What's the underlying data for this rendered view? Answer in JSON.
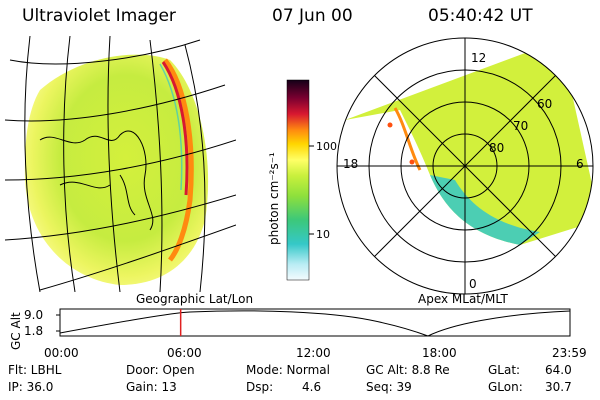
{
  "header": {
    "title": "Ultraviolet Imager",
    "date": "07 Jun 00",
    "time": "05:40:42 UT"
  },
  "colorbar": {
    "unit_label": "photon cm⁻²s⁻¹",
    "ticks": [
      "100",
      "10"
    ],
    "colors": [
      "#1a0018",
      "#5a0020",
      "#c8102a",
      "#ff6a10",
      "#ffd600",
      "#ffff66",
      "#c8f03c",
      "#8ee03c",
      "#3cc87a",
      "#35c8c8",
      "#9fe8f0",
      "#e8f8fc"
    ]
  },
  "left_panel": {
    "caption": "Geographic Lat/Lon"
  },
  "right_panel": {
    "caption": "Apex MLat/MLT",
    "lat_labels": [
      "60",
      "70",
      "80"
    ],
    "mlt_labels": [
      "12",
      "18",
      "6",
      "0"
    ]
  },
  "timeline": {
    "ylabel": "GC Alt",
    "yticks": [
      "9.0",
      "1.8"
    ],
    "xticks": [
      "00:00",
      "06:00",
      "12:00",
      "18:00",
      "23:59"
    ],
    "current_time_frac": 0.2366,
    "cursor_color": "#e02020"
  },
  "info": {
    "filter": "Flt: LBHL",
    "ip": "IP: 36.0",
    "door": "Door: Open",
    "gain": "Gain: 13",
    "mode": "Mode: Normal",
    "dsp_label": "Dsp:",
    "dsp_value": "4.6",
    "gc_alt": "GC Alt: 8.8 Re",
    "seq": "Seq: 39",
    "glat_label": "GLat:",
    "glat_value": "64.0",
    "glon_label": "GLon:",
    "glon_value": "30.7"
  }
}
